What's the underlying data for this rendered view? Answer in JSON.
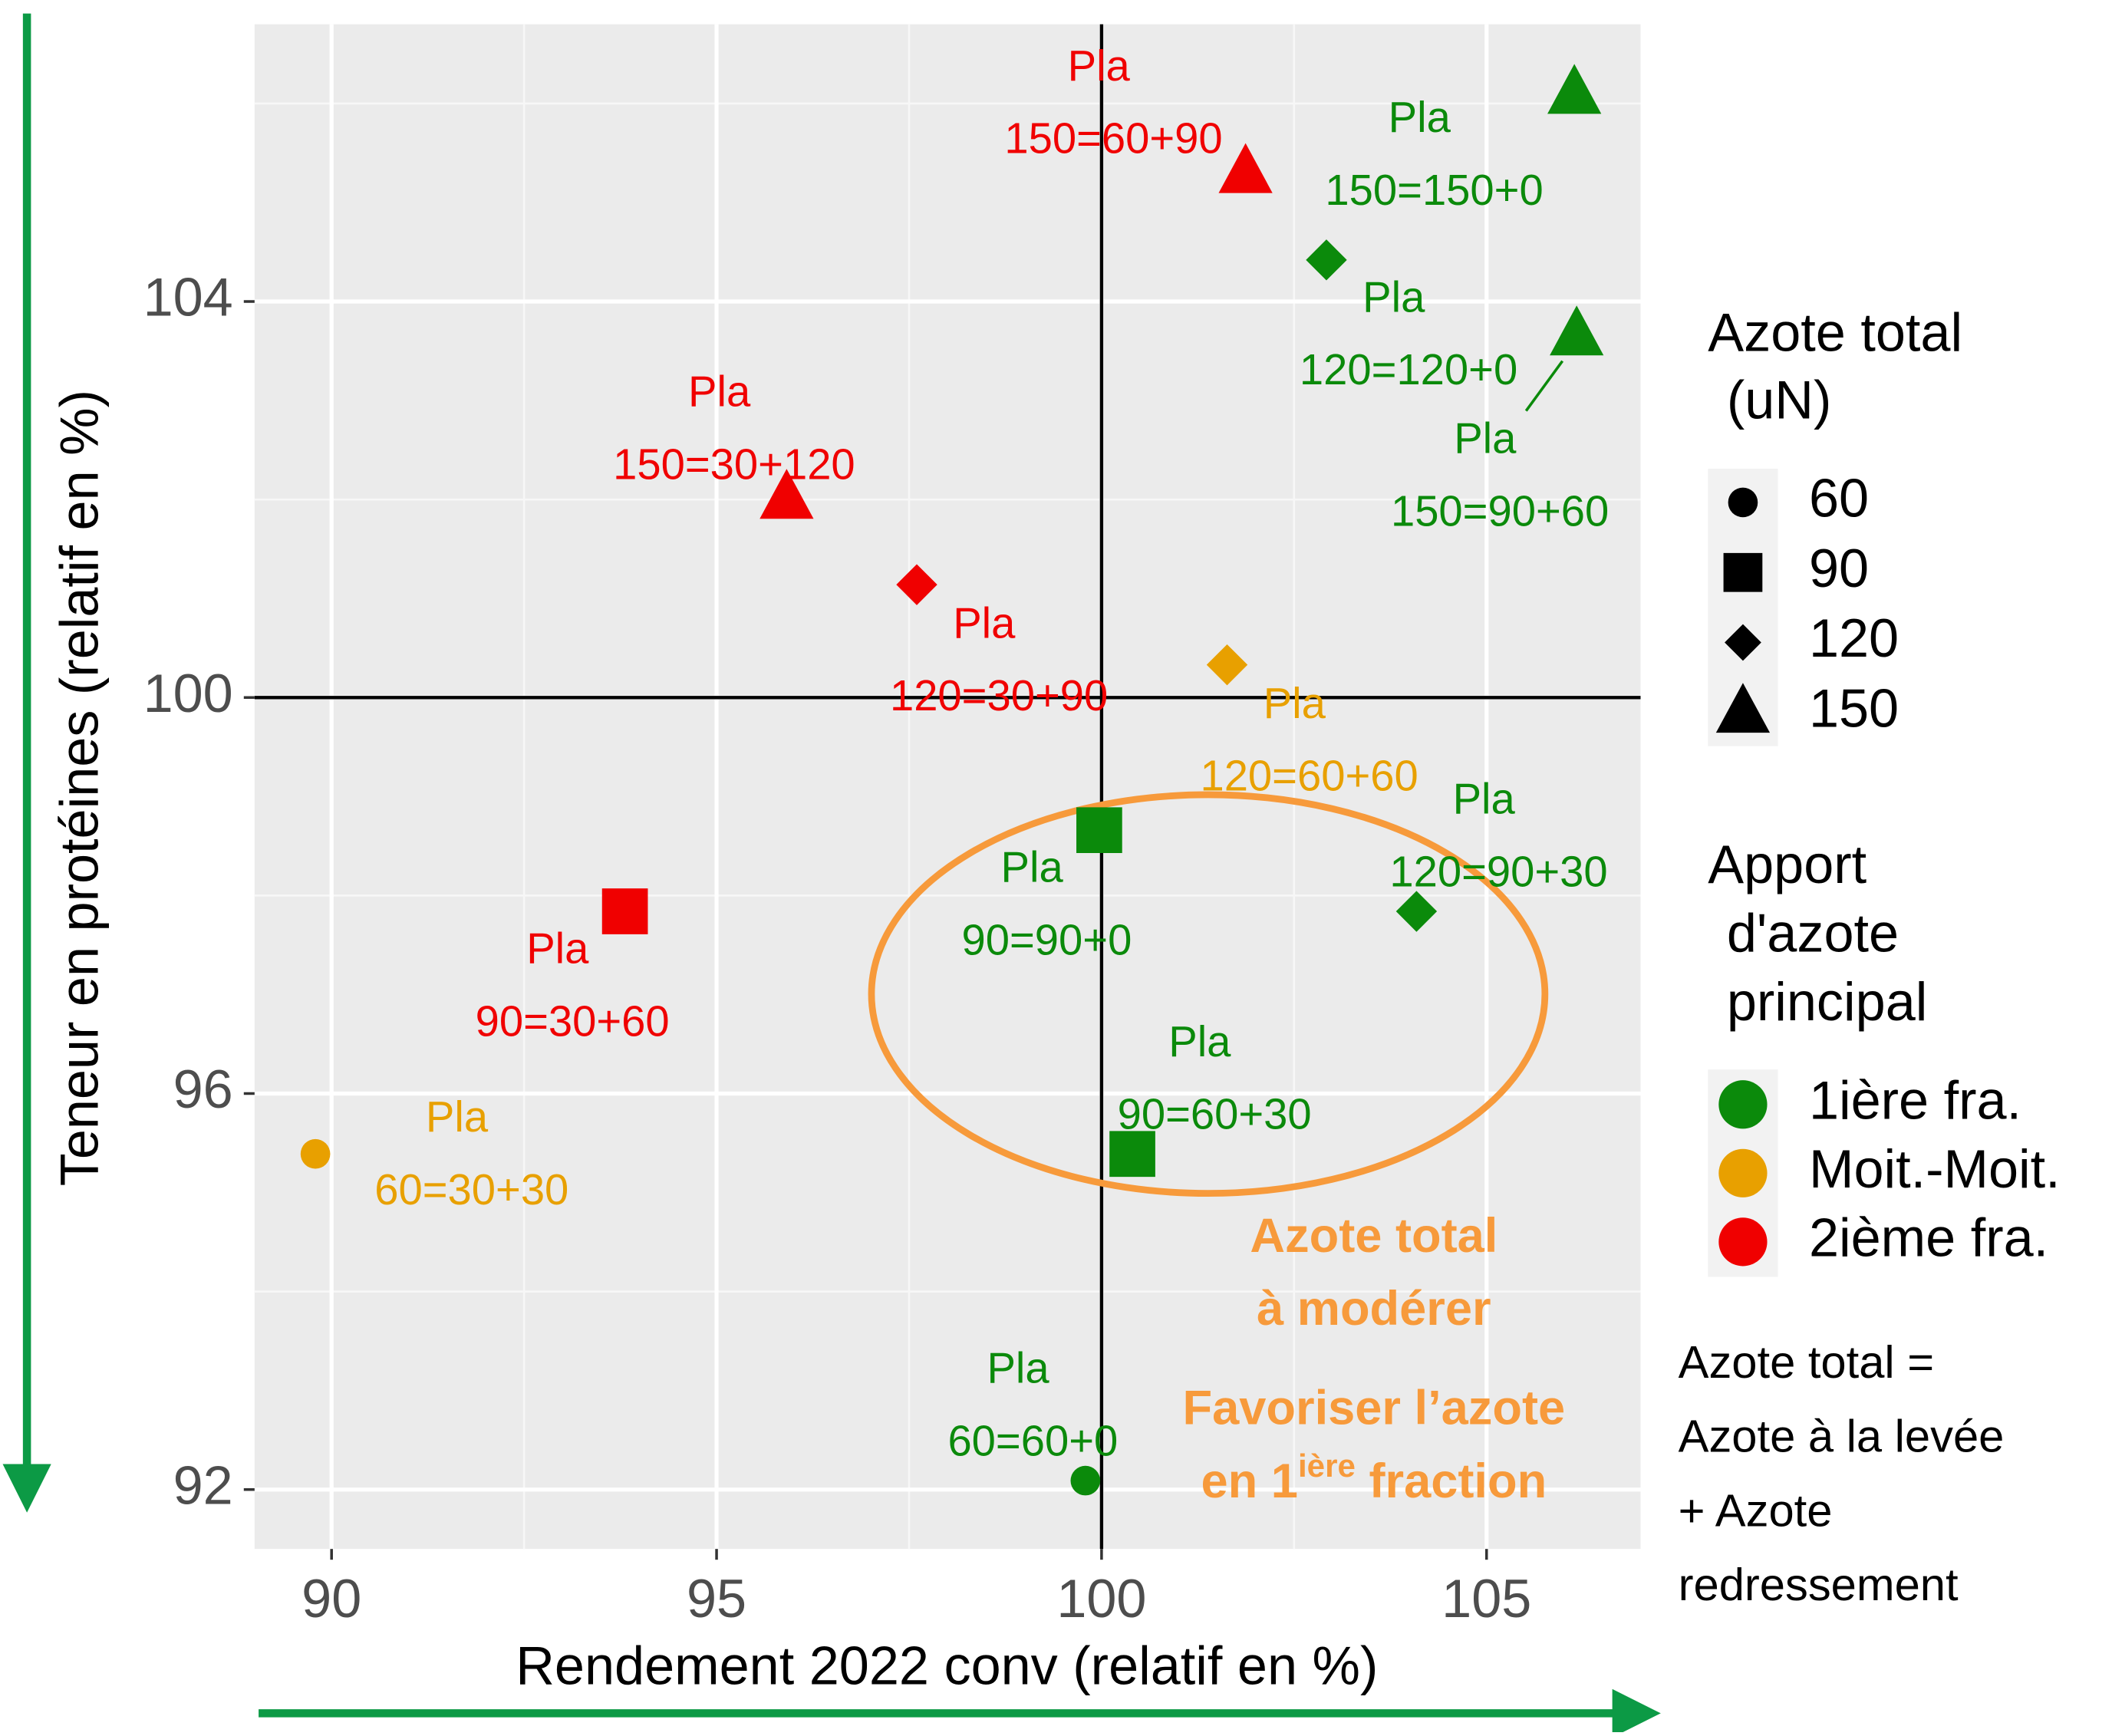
{
  "chart_data": {
    "type": "scatter",
    "xlabel": "Rendement 2022 conv (relatif en %)",
    "ylabel": "Teneur en protéines (relatif en %)",
    "xlim": [
      89,
      107
    ],
    "ylim": [
      91.4,
      106.8
    ],
    "xticks": [
      90,
      95,
      100,
      105
    ],
    "yticks": [
      92,
      96,
      100,
      104
    ],
    "xminor": [
      92.5,
      97.5,
      102.5
    ],
    "yminor": [
      94,
      98,
      102,
      106
    ],
    "grid": true,
    "vlines": [
      100
    ],
    "hlines": [
      100
    ],
    "shape_legend": {
      "title": [
        "Azote total",
        "(uN)"
      ],
      "values": [
        60,
        90,
        120,
        150
      ]
    },
    "color_legend_title": [
      "Apport",
      "d'azote",
      "principal"
    ],
    "series": [
      {
        "name": "1ière fra.",
        "color": "#0b8a0b",
        "x": [
          106.14,
          102.92,
          106.17,
          99.97,
          104.09,
          100.4,
          99.79
        ],
        "y": [
          106.1,
          104.42,
          103.66,
          98.66,
          97.84,
          95.39,
          92.09
        ],
        "azote": [
          150,
          120,
          150,
          90,
          120,
          90,
          60
        ],
        "labels": [
          [
            "Pla",
            "150=150+0"
          ],
          [
            "Pla",
            "120=120+0"
          ],
          [
            "Pla",
            "150=90+60"
          ],
          [
            "Pla",
            "90=90+0"
          ],
          [
            "Pla",
            "120=90+30"
          ],
          [
            "Pla",
            "90=60+30"
          ],
          [
            "Pla",
            "60=60+0"
          ]
        ]
      },
      {
        "name": "Moit.-Moit.",
        "color": "#e8a000",
        "x": [
          101.63,
          89.79
        ],
        "y": [
          100.33,
          95.39
        ],
        "azote": [
          120,
          60
        ],
        "labels": [
          [
            "Pla",
            "120=60+60"
          ],
          [
            "Pla",
            "60=30+30"
          ]
        ]
      },
      {
        "name": "2ième fra.",
        "color": "#f00000",
        "x": [
          101.87,
          95.91,
          97.6,
          93.81
        ],
        "y": [
          105.3,
          102.01,
          101.14,
          97.84
        ],
        "azote": [
          150,
          150,
          120,
          90
        ],
        "labels": [
          [
            "Pla",
            "150=60+90"
          ],
          [
            "Pla",
            "150=30+120"
          ],
          [
            "Pla",
            "120=30+90"
          ],
          [
            "Pla",
            "90=30+60"
          ]
        ]
      }
    ],
    "annotations": [
      {
        "lines": [
          "Azote total",
          "à modérer"
        ]
      },
      {
        "lines": [
          "Favoriser l’azote"
        ],
        "sup_line": [
          "en 1",
          "ière",
          " fraction"
        ]
      }
    ],
    "note": [
      "Azote total =",
      "Azote à la levée",
      "+ Azote",
      "redressement"
    ]
  }
}
